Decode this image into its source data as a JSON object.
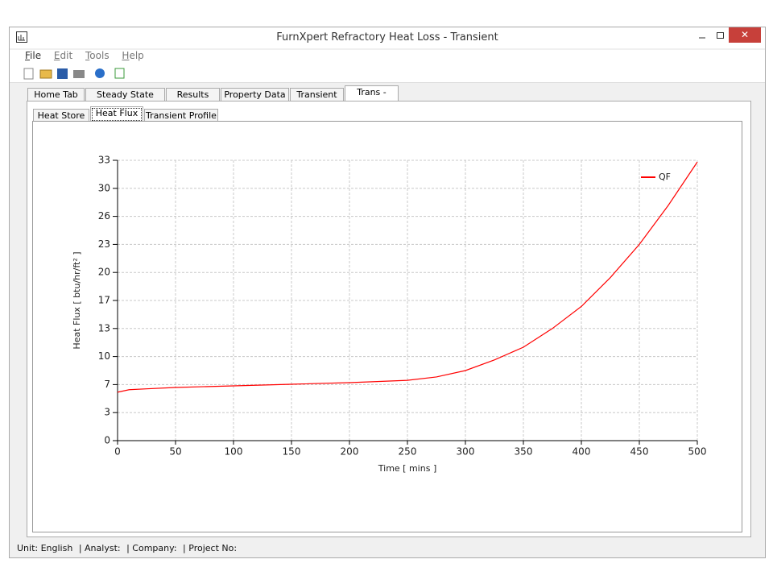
{
  "window": {
    "title": "FurnXpert Refractory Heat Loss - Transient"
  },
  "menu": [
    "File",
    "Edit",
    "Tools",
    "Help"
  ],
  "tabs": [
    "Home Tab",
    "Steady State Calc",
    "Results",
    "Property Data",
    "Transient",
    "Trans - Heat"
  ],
  "subtabs": [
    "Heat Store",
    "Heat Flux",
    "Transient Profile"
  ],
  "status_bar": [
    "Unit: English",
    "| Analyst:",
    "| Company:",
    "| Project No:"
  ],
  "chart_data": {
    "type": "line",
    "xlabel": "Time [ mins ]",
    "ylabel": "Heat Flux [ btu/hr/ft² ]",
    "x": [
      0,
      10,
      25,
      50,
      100,
      150,
      200,
      250,
      275,
      300,
      325,
      350,
      375,
      400,
      425,
      450,
      475,
      500
    ],
    "series": [
      {
        "name": "QF",
        "color": "#ff0000",
        "values": [
          5.7,
          6.0,
          6.1,
          6.26,
          6.45,
          6.64,
          6.83,
          7.1,
          7.5,
          8.25,
          9.5,
          11.0,
          13.2,
          15.8,
          19.2,
          23.1,
          27.7,
          32.8
        ]
      }
    ],
    "xlim": [
      0,
      500
    ],
    "ylim": [
      0,
      33
    ],
    "xticks": [
      0,
      50,
      100,
      150,
      200,
      250,
      300,
      350,
      400,
      450,
      500
    ],
    "yticks": [
      0,
      {
        "value": 3.3,
        "label": "3"
      },
      {
        "value": 6.6,
        "label": "7"
      },
      {
        "value": 9.9,
        "label": "10"
      },
      {
        "value": 13.2,
        "label": "13"
      },
      {
        "value": 16.5,
        "label": "17"
      },
      {
        "value": 19.8,
        "label": "20"
      },
      {
        "value": 23.1,
        "label": "23"
      },
      {
        "value": 26.4,
        "label": "26"
      },
      {
        "value": 29.7,
        "label": "30"
      },
      33
    ],
    "grid": true,
    "legend": "upper right"
  }
}
